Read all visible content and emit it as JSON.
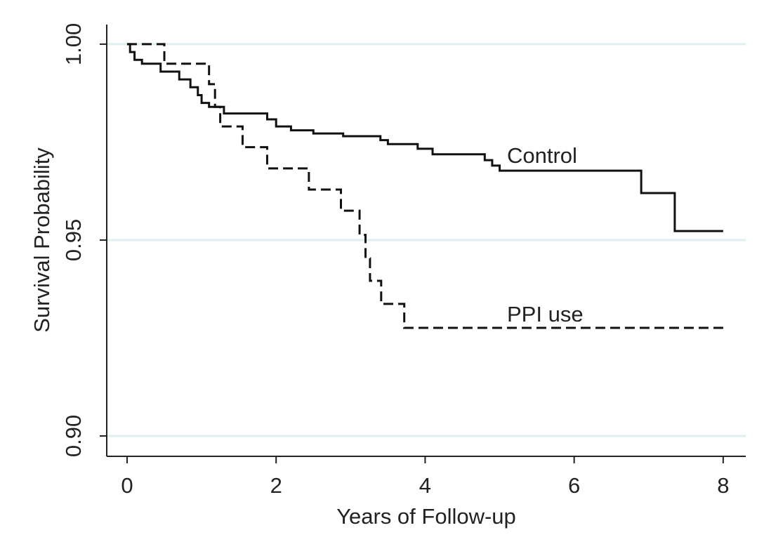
{
  "chart_data": {
    "type": "step",
    "x_label": "Years of Follow-up",
    "y_label": "Survival Probability",
    "xlim": [
      -0.273,
      8.303
    ],
    "ylim": [
      0.8948,
      1.005
    ],
    "xticks": [
      0,
      2,
      4,
      6,
      8
    ],
    "yticks": [
      {
        "value": 0.9,
        "label": "0.90"
      },
      {
        "value": 0.95,
        "label": "0.95"
      },
      {
        "value": 1.0,
        "label": "1.00"
      }
    ],
    "grid": true,
    "grid_color": "#dfeeee",
    "series": [
      {
        "name": "Control",
        "color": "#111111",
        "dash": false,
        "x": [
          0,
          0.04,
          0.1,
          0.2,
          0.45,
          0.7,
          0.85,
          0.95,
          1.0,
          1.1,
          1.3,
          1.88,
          2.0,
          2.2,
          2.5,
          2.9,
          3.4,
          3.5,
          3.9,
          4.1,
          4.8,
          4.9,
          5.0,
          6.9,
          7.35,
          8.0
        ],
        "values": [
          1.0,
          0.998,
          0.996,
          0.995,
          0.993,
          0.991,
          0.989,
          0.987,
          0.985,
          0.984,
          0.9823,
          0.9808,
          0.979,
          0.978,
          0.9772,
          0.9765,
          0.9755,
          0.9745,
          0.9733,
          0.9719,
          0.9704,
          0.969,
          0.9677,
          0.962,
          0.9523,
          0.9523
        ]
      },
      {
        "name": "PPI use",
        "color": "#111111",
        "dash": true,
        "x": [
          0,
          0.5,
          1.1,
          1.18,
          1.25,
          1.55,
          1.88,
          2.44,
          2.87,
          3.12,
          3.2,
          3.26,
          3.41,
          3.72,
          8.05
        ],
        "values": [
          1.0,
          0.995,
          0.9898,
          0.984,
          0.979,
          0.9737,
          0.9683,
          0.9629,
          0.9575,
          0.9513,
          0.9453,
          0.9396,
          0.9337,
          0.9276,
          0.9276
        ]
      }
    ]
  }
}
